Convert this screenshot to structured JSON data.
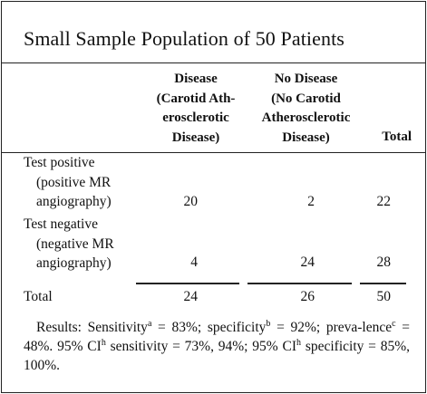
{
  "title": "Small Sample Population of 50 Patients",
  "columns": {
    "disease": [
      "Disease",
      "(Carotid Ath-",
      "erosclerotic",
      "Disease)"
    ],
    "no_disease": [
      "No Disease",
      "(No Carotid",
      "Atherosclerotic",
      "Disease)"
    ],
    "total": "Total"
  },
  "rows": [
    {
      "label": [
        "Test positive",
        "(positive MR",
        "angiography)"
      ],
      "disease": "20",
      "no_disease": "2",
      "total": "22"
    },
    {
      "label": [
        "Test negative",
        "(negative MR",
        "angiography)"
      ],
      "disease": "4",
      "no_disease": "24",
      "total": "28"
    }
  ],
  "total_row": {
    "label": "Total",
    "disease": "24",
    "no_disease": "26",
    "total": "50"
  },
  "results": {
    "prefix": "Results: Sensitivity",
    "sup_a": "a",
    "part1": " = 83%; specificity",
    "sup_b": "b",
    "part2": " = 92%; preva-lence",
    "sup_c": "c",
    "part3": " = 48%. 95% CI",
    "sup_h1": "h",
    "part4": " sensitivity = 73%, 94%; 95% CI",
    "sup_h2": "h",
    "part5": " specificity = 85%, 100%."
  }
}
